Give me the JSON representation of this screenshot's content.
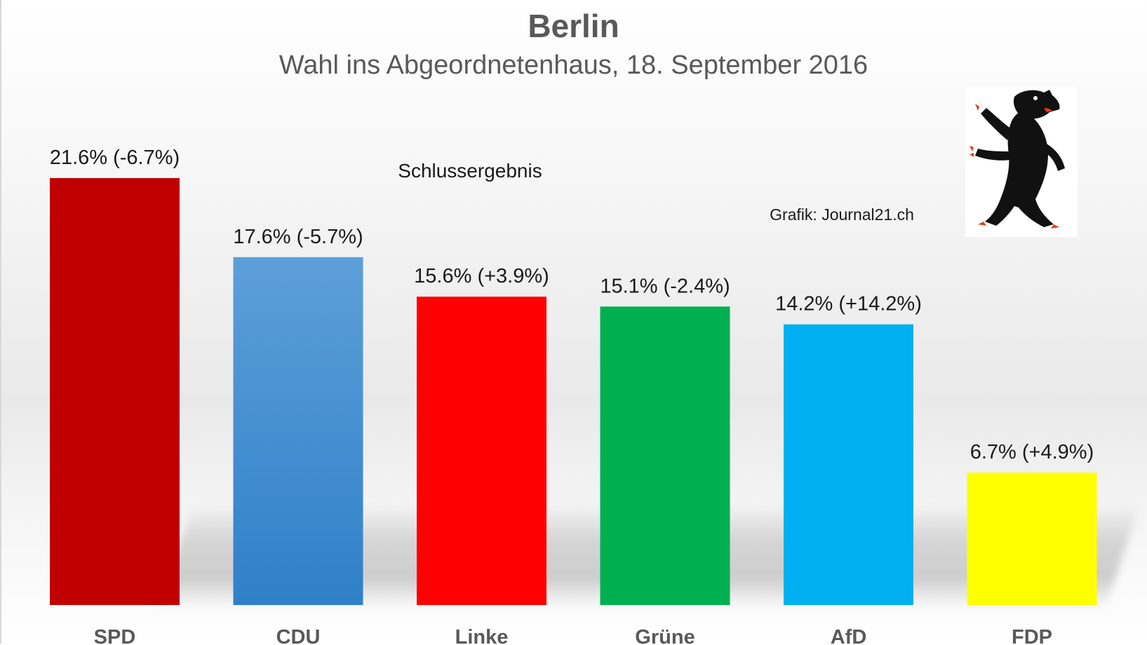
{
  "title": "Berlin",
  "subtitle": "Wahl ins Abgeordnetenhaus, 18. September 2016",
  "note": "Schlussergebnis",
  "credit": "Grafik: Journal21.ch",
  "emblem": "berlin-bear-icon",
  "chart_data": {
    "type": "bar",
    "title": "Berlin",
    "subtitle": "Wahl ins Abgeordnetenhaus, 18. September 2016",
    "categories": [
      "SPD",
      "CDU",
      "Linke",
      "Grüne",
      "AfD",
      "FDP"
    ],
    "values": [
      21.6,
      17.6,
      15.6,
      15.1,
      14.2,
      6.7
    ],
    "changes": [
      -6.7,
      -5.7,
      3.9,
      -2.4,
      14.2,
      4.9
    ],
    "data_labels": [
      "21.6% (-6.7%)",
      "17.6% (-5.7%)",
      "15.6% (+3.9%)",
      "15.1% (-2.4%)",
      "14.2% (+14.2%)",
      "6.7% (+4.9%)"
    ],
    "colors": [
      "#c00000",
      "#5b9bd5",
      "#ff0000",
      "#00b050",
      "#00b0f0",
      "#ffff00"
    ],
    "xlabel": "",
    "ylabel": "",
    "ylim": [
      0,
      21.6
    ],
    "grid": false,
    "legend": "none"
  }
}
